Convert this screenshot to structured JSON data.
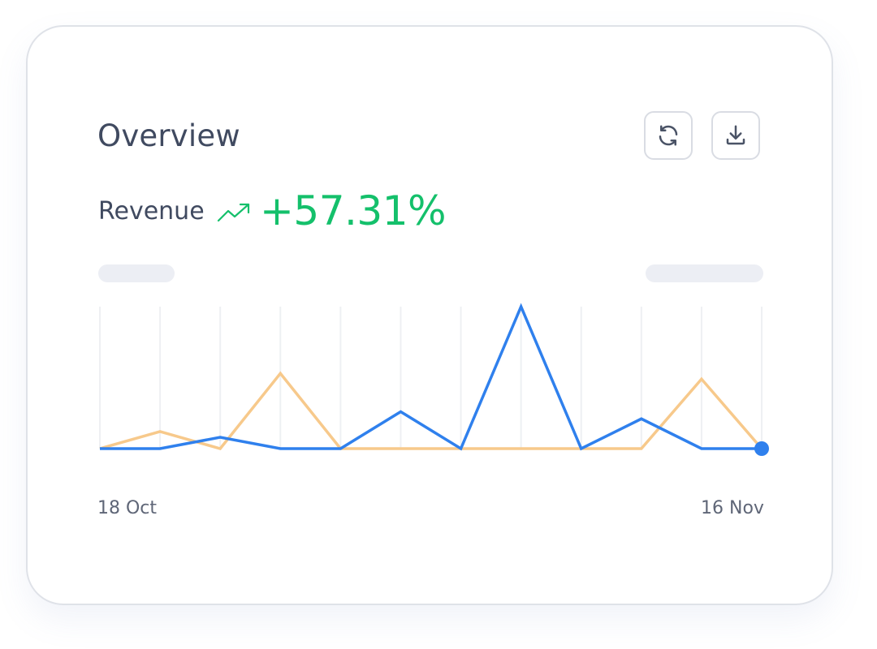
{
  "card": {
    "title": "Overview",
    "actions": [
      {
        "icon": "refresh-icon",
        "label": ""
      },
      {
        "icon": "download-icon",
        "label": ""
      }
    ],
    "metric": {
      "label": "Revenue",
      "trend_icon": "trend-up-icon",
      "value": "+57.31%",
      "color": "#14c06b"
    }
  },
  "chart_data": {
    "type": "line",
    "x_labels_visible": [
      "18 Oct",
      "16 Nov"
    ],
    "x": [
      0,
      1,
      2,
      3,
      4,
      5,
      6,
      7,
      8,
      9,
      10,
      11
    ],
    "ylim": [
      0,
      100
    ],
    "grid": "vertical",
    "legend": "none",
    "series": [
      {
        "color": "#f7c98b",
        "values": [
          0,
          12,
          0,
          53,
          0,
          0,
          0,
          0,
          0,
          0,
          49,
          0
        ]
      },
      {
        "color": "#2f80ed",
        "values": [
          0,
          0,
          8,
          0,
          0,
          26,
          0,
          100,
          0,
          21,
          0,
          0
        ]
      }
    ]
  }
}
